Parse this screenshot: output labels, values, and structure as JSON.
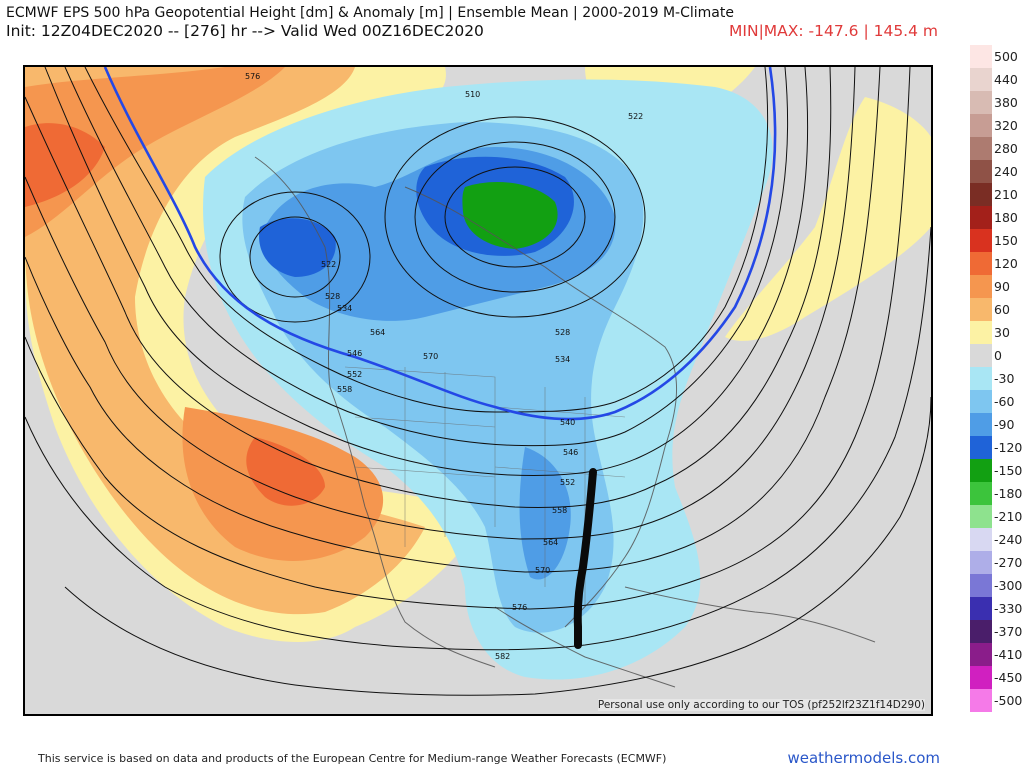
{
  "header": {
    "title": "ECMWF EPS 500 hPa Geopotential Height [dm] & Anomaly [m] | Ensemble Mean | 2000-2019 M-Climate",
    "init": "Init: 12Z04DEC2020 -- [276] hr --> Valid Wed 00Z16DEC2020",
    "minmax": "MIN|MAX: -147.6 | 145.4 m"
  },
  "map": {
    "tos_text": "Personal use only according to our TOS (pf252lf23Z1f14D290)",
    "contour_labels": [
      "510",
      "522",
      "528",
      "534",
      "540",
      "546",
      "552",
      "558",
      "564",
      "570",
      "576",
      "582",
      "522",
      "528",
      "534",
      "546",
      "552",
      "558",
      "564",
      "570",
      "576"
    ],
    "annotation_marker": "thick-black-line-annotation"
  },
  "legend": {
    "items": [
      {
        "label": "500",
        "color": "#fde6e4"
      },
      {
        "label": "440",
        "color": "#e9d4cf"
      },
      {
        "label": "380",
        "color": "#d8bbb3"
      },
      {
        "label": "320",
        "color": "#c79d94"
      },
      {
        "label": "280",
        "color": "#ad7b70"
      },
      {
        "label": "240",
        "color": "#8f5247"
      },
      {
        "label": "210",
        "color": "#7a2d24"
      },
      {
        "label": "180",
        "color": "#a3201a"
      },
      {
        "label": "150",
        "color": "#d9321f"
      },
      {
        "label": "120",
        "color": "#ef6a35"
      },
      {
        "label": "90",
        "color": "#f5964f"
      },
      {
        "label": "60",
        "color": "#f8b86c"
      },
      {
        "label": "30",
        "color": "#fcf2a4"
      },
      {
        "label": "0",
        "color": "#d9d9d9"
      },
      {
        "label": "-30",
        "color": "#a9e6f4"
      },
      {
        "label": "-60",
        "color": "#7ec6f0"
      },
      {
        "label": "-90",
        "color": "#4f9de6"
      },
      {
        "label": "-120",
        "color": "#1f63d8"
      },
      {
        "label": "-150",
        "color": "#12a012"
      },
      {
        "label": "-180",
        "color": "#3cc43c"
      },
      {
        "label": "-210",
        "color": "#8ee28e"
      },
      {
        "label": "-240",
        "color": "#d8d8f2"
      },
      {
        "label": "-270",
        "color": "#aeaee8"
      },
      {
        "label": "-300",
        "color": "#7a77d6"
      },
      {
        "label": "-330",
        "color": "#3a2fb0"
      },
      {
        "label": "-370",
        "color": "#4a1e6a"
      },
      {
        "label": "-410",
        "color": "#8a1d8a"
      },
      {
        "label": "-450",
        "color": "#d020c0"
      },
      {
        "label": "-500",
        "color": "#f57ae8"
      }
    ]
  },
  "footer": {
    "credit": "This service is based on data and products of the European Centre for Medium-range Weather Forecasts (ECMWF)",
    "site": "weathermodels.com"
  }
}
